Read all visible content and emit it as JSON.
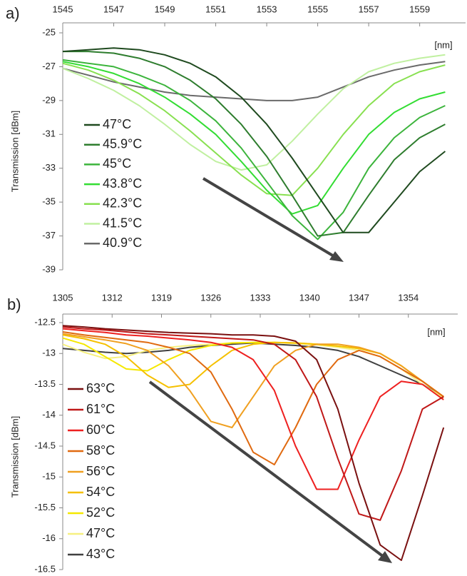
{
  "chart_data": [
    {
      "type": "line",
      "panel_label": "a)",
      "x_unit": "[nm]",
      "y_label": "Transmission [dBm]",
      "xlim": [
        1545,
        1560.8
      ],
      "xticks": [
        1545,
        1547,
        1549,
        1551,
        1553,
        1555,
        1557,
        1559
      ],
      "ylim": [
        -39,
        -25
      ],
      "yticks": [
        -25,
        -27,
        -29,
        -31,
        -33,
        -35,
        -37,
        -39
      ],
      "x": [
        1545,
        1546,
        1547,
        1548,
        1549,
        1550,
        1551,
        1552,
        1553,
        1554,
        1555,
        1556,
        1557,
        1558,
        1559,
        1560
      ],
      "series": [
        {
          "name": "47°C",
          "color": "#1f4a1f",
          "values": [
            -26.1,
            -26.0,
            -25.9,
            -26.0,
            -26.3,
            -26.8,
            -27.6,
            -28.8,
            -30.4,
            -32.4,
            -34.6,
            -36.8,
            -36.8,
            -35.0,
            -33.2,
            -32.0
          ]
        },
        {
          "name": "45.9°C",
          "color": "#2e7d2e",
          "values": [
            -26.1,
            -26.1,
            -26.2,
            -26.5,
            -27.0,
            -27.8,
            -28.9,
            -30.4,
            -32.3,
            -34.6,
            -37.0,
            -36.8,
            -34.6,
            -32.5,
            -31.2,
            -30.4
          ]
        },
        {
          "name": "45°C",
          "color": "#3cb43c",
          "values": [
            -26.6,
            -26.8,
            -27.0,
            -27.5,
            -28.1,
            -29.0,
            -30.2,
            -31.8,
            -33.8,
            -35.8,
            -37.2,
            -35.6,
            -33.0,
            -31.2,
            -30.0,
            -29.3
          ]
        },
        {
          "name": "43.8°C",
          "color": "#33dd33",
          "values": [
            -26.7,
            -27.0,
            -27.4,
            -28.0,
            -28.8,
            -29.8,
            -31.0,
            -32.6,
            -34.3,
            -35.7,
            -35.2,
            -33.0,
            -31.0,
            -29.7,
            -28.9,
            -28.5
          ]
        },
        {
          "name": "42.3°C",
          "color": "#88e050",
          "values": [
            -26.8,
            -27.2,
            -27.8,
            -28.6,
            -29.6,
            -30.8,
            -32.1,
            -33.4,
            -34.5,
            -34.6,
            -33.0,
            -31.0,
            -29.3,
            -28.0,
            -27.3,
            -26.9
          ]
        },
        {
          "name": "41.5°C",
          "color": "#c0f0a0",
          "values": [
            -27.1,
            -27.7,
            -28.4,
            -29.3,
            -30.4,
            -31.6,
            -32.6,
            -33.1,
            -32.8,
            -31.4,
            -29.8,
            -28.3,
            -27.3,
            -26.8,
            -26.5,
            -26.3
          ]
        },
        {
          "name": "40.9°C",
          "color": "#6a6a6a",
          "values": [
            -27.1,
            -27.5,
            -27.9,
            -28.2,
            -28.5,
            -28.7,
            -28.8,
            -28.9,
            -29.0,
            -29.0,
            -28.8,
            -28.2,
            -27.6,
            -27.2,
            -26.9,
            -26.7
          ]
        }
      ]
    },
    {
      "type": "line",
      "panel_label": "b)",
      "x_unit": "[nm]",
      "y_label": "Transmission [dBm]",
      "xlim": [
        1305,
        1361
      ],
      "xticks": [
        1305,
        1312,
        1319,
        1326,
        1333,
        1340,
        1347,
        1354
      ],
      "ylim": [
        -16.5,
        -12.5
      ],
      "yticks": [
        -12.5,
        -13,
        -13.5,
        -14,
        -14.5,
        -15,
        -15.5,
        -16,
        -16.5
      ],
      "x": [
        1305,
        1308,
        1311,
        1314,
        1317,
        1320,
        1323,
        1326,
        1329,
        1332,
        1335,
        1338,
        1341,
        1344,
        1347,
        1350,
        1353,
        1356,
        1359
      ],
      "series": [
        {
          "name": "63°C",
          "color": "#7a1010",
          "values": [
            -12.55,
            -12.57,
            -12.6,
            -12.62,
            -12.64,
            -12.66,
            -12.67,
            -12.68,
            -12.7,
            -12.7,
            -12.72,
            -12.8,
            -13.1,
            -13.9,
            -15.1,
            -16.1,
            -16.35,
            -15.3,
            -14.2
          ]
        },
        {
          "name": "61°C",
          "color": "#c01818",
          "values": [
            -12.57,
            -12.6,
            -12.62,
            -12.65,
            -12.68,
            -12.7,
            -12.72,
            -12.74,
            -12.76,
            -12.78,
            -12.85,
            -13.1,
            -13.7,
            -14.7,
            -15.6,
            -15.7,
            -14.9,
            -13.9,
            -13.7
          ]
        },
        {
          "name": "60°C",
          "color": "#ee2020",
          "values": [
            -12.6,
            -12.63,
            -12.66,
            -12.7,
            -12.72,
            -12.75,
            -12.78,
            -12.82,
            -12.9,
            -13.1,
            -13.6,
            -14.5,
            -15.2,
            -15.2,
            -14.4,
            -13.7,
            -13.45,
            -13.5,
            -13.75
          ]
        },
        {
          "name": "58°C",
          "color": "#e06a10",
          "values": [
            -12.65,
            -12.7,
            -12.74,
            -12.78,
            -12.82,
            -12.9,
            -13.0,
            -13.3,
            -13.9,
            -14.6,
            -14.8,
            -14.2,
            -13.5,
            -13.1,
            -12.95,
            -13.05,
            -13.25,
            -13.45,
            -13.7
          ]
        },
        {
          "name": "56°C",
          "color": "#f0a020",
          "values": [
            -12.68,
            -12.73,
            -12.78,
            -12.84,
            -12.95,
            -13.2,
            -13.6,
            -14.1,
            -14.2,
            -13.7,
            -13.2,
            -12.95,
            -12.85,
            -12.85,
            -12.9,
            -13.0,
            -13.2,
            -13.45,
            -13.7
          ]
        },
        {
          "name": "54°C",
          "color": "#f5c000",
          "values": [
            -12.7,
            -12.76,
            -12.85,
            -13.05,
            -13.35,
            -13.55,
            -13.5,
            -13.2,
            -12.95,
            -12.85,
            -12.82,
            -12.83,
            -12.85,
            -12.88,
            -12.92,
            -13.0,
            -13.2,
            -13.45,
            -13.7
          ]
        },
        {
          "name": "52°C",
          "color": "#f5e800",
          "values": [
            -12.75,
            -12.85,
            -13.05,
            -13.25,
            -13.28,
            -13.1,
            -12.95,
            -12.87,
            -12.83,
            -12.82,
            -12.82,
            -12.83,
            -12.85,
            -12.88,
            -12.92,
            -13.0,
            -13.2,
            -13.45,
            -13.7
          ]
        },
        {
          "name": "47°C",
          "color": "#f6f080",
          "values": [
            -12.85,
            -12.98,
            -13.08,
            -13.05,
            -12.95,
            -12.9,
            -12.87,
            -12.85,
            -12.83,
            -12.82,
            -12.82,
            -12.84,
            -12.86,
            -12.9,
            -12.95,
            -13.05,
            -13.25,
            -13.5,
            -13.72
          ]
        },
        {
          "name": "43°C",
          "color": "#404040",
          "values": [
            -12.92,
            -12.95,
            -12.98,
            -13.0,
            -12.98,
            -12.95,
            -12.9,
            -12.87,
            -12.85,
            -12.83,
            -12.85,
            -12.87,
            -12.9,
            -12.95,
            -13.05,
            -13.2,
            -13.35,
            -13.5,
            -13.7
          ]
        }
      ]
    }
  ]
}
